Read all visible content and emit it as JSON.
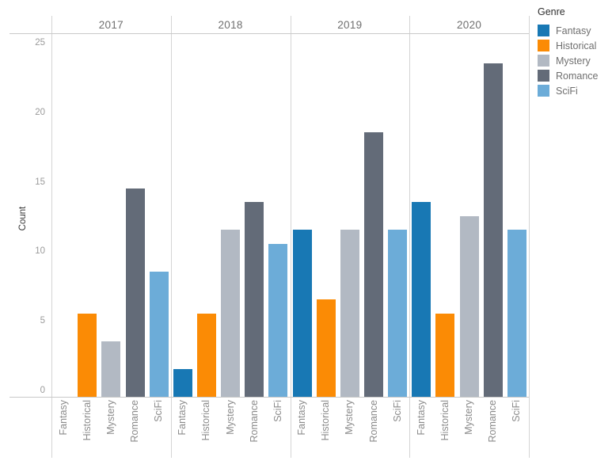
{
  "chart_data": {
    "type": "bar",
    "faceted_by": "year",
    "facet_labels": [
      "2017",
      "2018",
      "2019",
      "2020"
    ],
    "categories": [
      "Fantasy",
      "Historical",
      "Mystery",
      "Romance",
      "SciFi"
    ],
    "panels": [
      {
        "year": "2017",
        "values": [
          0,
          6,
          4,
          15,
          9
        ]
      },
      {
        "year": "2018",
        "values": [
          2,
          6,
          12,
          14,
          11
        ]
      },
      {
        "year": "2019",
        "values": [
          12,
          7,
          12,
          19,
          12
        ]
      },
      {
        "year": "2020",
        "values": [
          14,
          6,
          13,
          24,
          12
        ]
      }
    ],
    "ylabel": "Count",
    "yticks": [
      0,
      5,
      10,
      15,
      20,
      25
    ],
    "ylim": [
      0,
      26.1
    ],
    "grid": false,
    "colors": {
      "Fantasy": "#1878b4",
      "Historical": "#fb8b05",
      "Mystery": "#b2b9c3",
      "Romance": "#636b78",
      "SciFi": "#6cacd8"
    },
    "legend": {
      "title": "Genre",
      "position": "top-right",
      "entries": [
        {
          "label": "Fantasy",
          "color": "#1878b4"
        },
        {
          "label": "Historical",
          "color": "#fb8b05"
        },
        {
          "label": "Mystery",
          "color": "#b2b9c3"
        },
        {
          "label": "Romance",
          "color": "#636b78"
        },
        {
          "label": "SciFi",
          "color": "#6cacd8"
        }
      ]
    }
  }
}
